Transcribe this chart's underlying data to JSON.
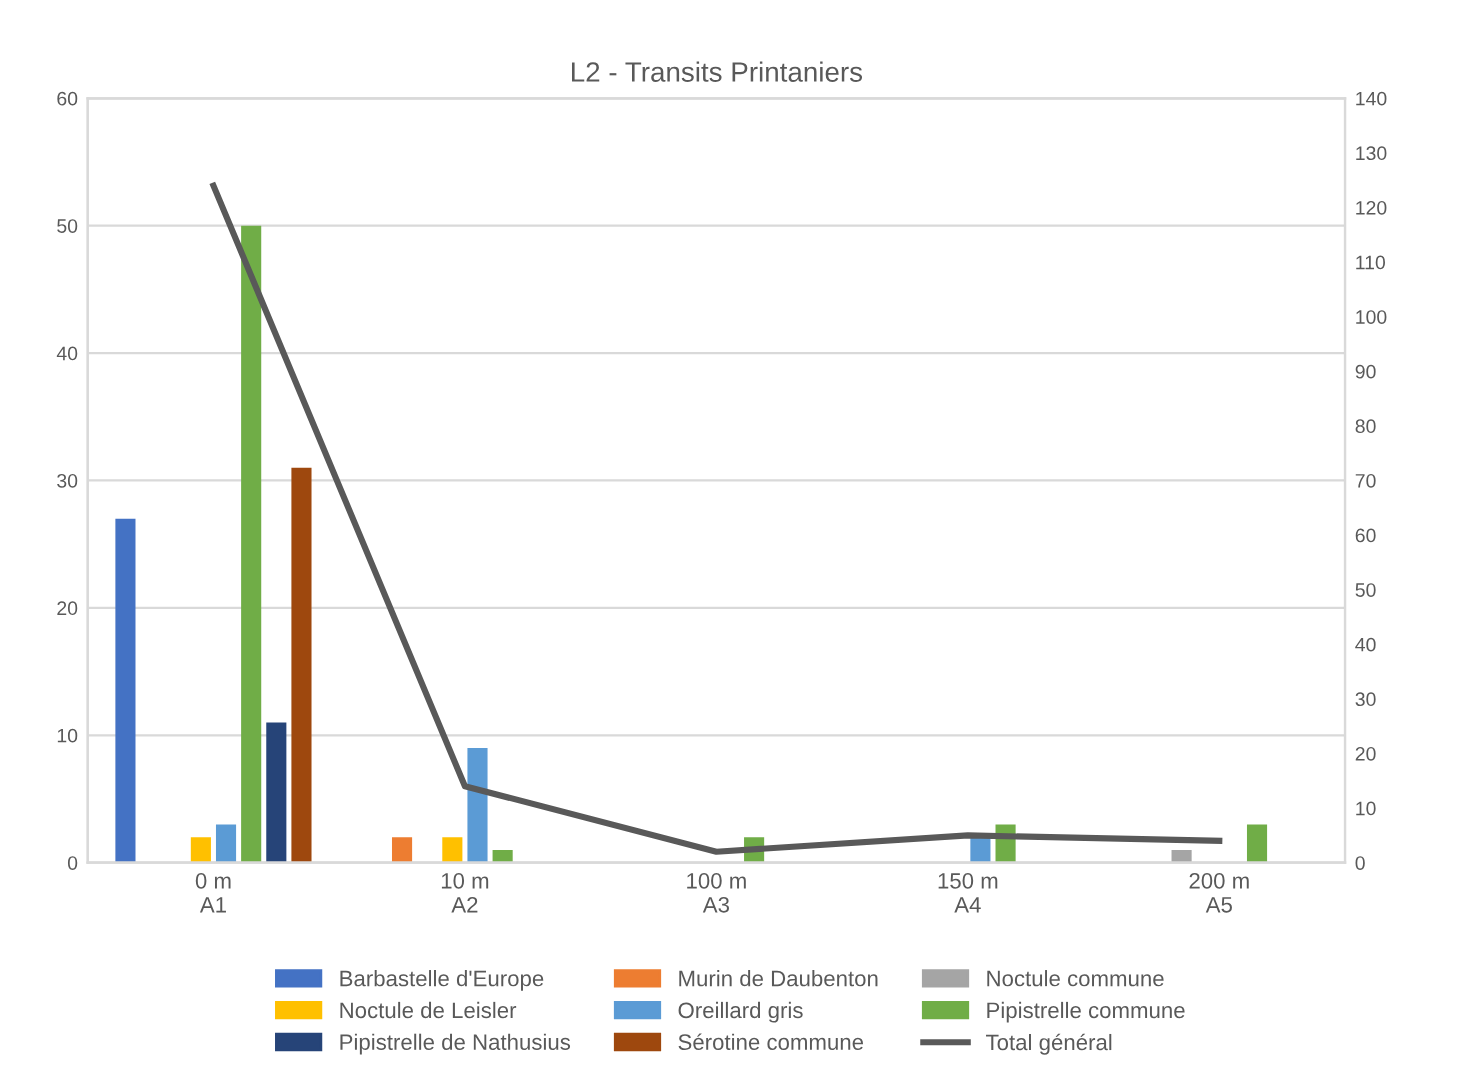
{
  "chart_data": {
    "type": "bar",
    "title": "L2 - Transits Printaniers",
    "categories": [
      "0 m\nA1",
      "10 m\nA2",
      "100 m\nA3",
      "150 m\nA4",
      "200 m\nA5"
    ],
    "series": [
      {
        "name": "Barbastelle d'Europe",
        "color": "#4472c4",
        "values": [
          27,
          0,
          0,
          0,
          0
        ]
      },
      {
        "name": "Murin de Daubenton",
        "color": "#ed7d31",
        "values": [
          0,
          2,
          0,
          0,
          0
        ]
      },
      {
        "name": "Noctule commune",
        "color": "#a5a5a5",
        "values": [
          0,
          0,
          0,
          0,
          1
        ]
      },
      {
        "name": "Noctule de Leisler",
        "color": "#ffc000",
        "values": [
          2,
          2,
          0,
          0,
          0
        ]
      },
      {
        "name": "Oreillard gris",
        "color": "#5b9bd5",
        "values": [
          3,
          9,
          0,
          2,
          0
        ]
      },
      {
        "name": "Pipistrelle commune",
        "color": "#70ad47",
        "values": [
          50,
          1,
          2,
          3,
          3
        ]
      },
      {
        "name": "Pipistrelle de Nathusius",
        "color": "#264478",
        "values": [
          11,
          0,
          0,
          0,
          0
        ]
      },
      {
        "name": "Sérotine commune",
        "color": "#9e480e",
        "values": [
          31,
          0,
          0,
          0,
          0
        ]
      },
      {
        "name": "Total général",
        "color": "#595959",
        "type": "line",
        "axis": "y2",
        "values": [
          124,
          14,
          2,
          5,
          4
        ]
      }
    ],
    "ylim": [
      0,
      60
    ],
    "yticks": [
      0,
      10,
      20,
      30,
      40,
      50,
      60
    ],
    "y2lim": [
      0,
      140
    ],
    "y2ticks": [
      0,
      10,
      20,
      30,
      40,
      50,
      60,
      70,
      80,
      90,
      100,
      110,
      120,
      130,
      140
    ],
    "grid": "y",
    "legend": "bottom"
  }
}
